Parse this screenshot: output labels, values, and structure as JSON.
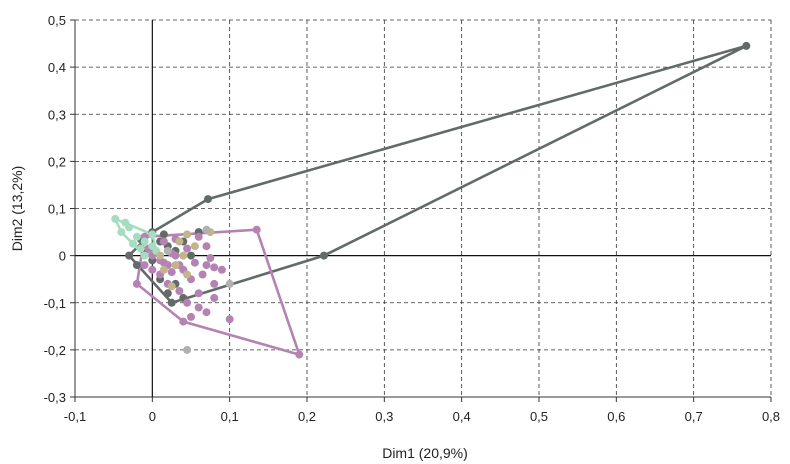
{
  "chart_data": {
    "type": "scatter",
    "title": "",
    "xlabel": "Dim1 (20,9%)",
    "ylabel": "Dim2 (13,2%)",
    "xlim": [
      -0.1,
      0.8
    ],
    "ylim": [
      -0.3,
      0.5
    ],
    "xticks": [
      -0.1,
      0,
      0.1,
      0.2,
      0.3,
      0.4,
      0.5,
      0.6,
      0.7,
      0.8
    ],
    "yticks": [
      -0.3,
      -0.2,
      -0.1,
      0,
      0.1,
      0.2,
      0.3,
      0.4,
      0.5
    ],
    "xtick_labels": [
      "-0,1",
      "0",
      "0,1",
      "0,2",
      "0,3",
      "0,4",
      "0,5",
      "0,6",
      "0,7",
      "0,8"
    ],
    "ytick_labels": [
      "-0,3",
      "-0,2",
      "-0,1",
      "0",
      "0,1",
      "0,2",
      "0,3",
      "0,4",
      "0,5"
    ],
    "grid": true,
    "grid_style": "dashed",
    "legend": "none",
    "series": [
      {
        "color": "#626b68",
        "hull": [
          [
            0.0,
            0.05
          ],
          [
            0.072,
            0.12
          ],
          [
            0.768,
            0.445
          ],
          [
            0.222,
            0.0
          ],
          [
            0.025,
            -0.1
          ],
          [
            -0.03,
            0.0
          ]
        ],
        "points": [
          [
            0.768,
            0.445
          ],
          [
            0.072,
            0.12
          ],
          [
            0.222,
            0.0
          ],
          [
            0.025,
            -0.1
          ],
          [
            -0.03,
            0.0
          ],
          [
            0.0,
            0.05
          ],
          [
            0.01,
            0.03
          ],
          [
            0.02,
            0.02
          ],
          [
            0.03,
            0.01
          ],
          [
            0.04,
            0.03
          ],
          [
            0.05,
            0.0
          ],
          [
            -0.02,
            -0.02
          ],
          [
            -0.01,
            0.01
          ],
          [
            0.0,
            -0.01
          ],
          [
            0.01,
            -0.05
          ],
          [
            0.02,
            -0.08
          ],
          [
            0.03,
            -0.06
          ],
          [
            0.04,
            -0.09
          ],
          [
            0.06,
            0.05
          ],
          [
            -0.015,
            0.035
          ],
          [
            0.015,
            0.045
          ]
        ]
      },
      {
        "color": "#b583b3",
        "hull": [
          [
            -0.01,
            0.04
          ],
          [
            0.135,
            0.055
          ],
          [
            0.19,
            -0.21
          ],
          [
            0.04,
            -0.14
          ],
          [
            -0.02,
            -0.06
          ]
        ],
        "points": [
          [
            0.135,
            0.055
          ],
          [
            0.19,
            -0.21
          ],
          [
            0.04,
            -0.14
          ],
          [
            -0.02,
            -0.06
          ],
          [
            -0.01,
            0.04
          ],
          [
            0.0,
            0.0
          ],
          [
            0.01,
            -0.01
          ],
          [
            0.02,
            -0.02
          ],
          [
            0.03,
            0.0
          ],
          [
            0.04,
            -0.03
          ],
          [
            0.05,
            -0.05
          ],
          [
            0.06,
            -0.08
          ],
          [
            0.07,
            -0.02
          ],
          [
            0.08,
            -0.06
          ],
          [
            0.1,
            -0.135
          ],
          [
            0.07,
            -0.12
          ],
          [
            0.05,
            -0.13
          ],
          [
            0.06,
            0.04
          ],
          [
            0.07,
            0.02
          ],
          [
            0.075,
            -0.005
          ],
          [
            0.08,
            -0.025
          ],
          [
            0.09,
            -0.03
          ],
          [
            0.03,
            0.035
          ],
          [
            0.015,
            0.03
          ],
          [
            -0.005,
            0.015
          ],
          [
            0.01,
            -0.04
          ],
          [
            0.02,
            -0.06
          ],
          [
            0.035,
            -0.075
          ],
          [
            0.045,
            -0.1
          ],
          [
            0.0,
            -0.03
          ],
          [
            -0.01,
            -0.02
          ],
          [
            0.025,
            0.005
          ],
          [
            0.045,
            0.015
          ],
          [
            0.055,
            -0.015
          ],
          [
            0.065,
            -0.04
          ],
          [
            0.08,
            -0.09
          ],
          [
            0.06,
            -0.11
          ],
          [
            0.035,
            -0.02
          ],
          [
            0.025,
            -0.035
          ],
          [
            0.015,
            -0.015
          ]
        ]
      },
      {
        "color": "#a6dcc0",
        "hull": [
          [
            -0.048,
            0.078
          ],
          [
            0.0,
            0.045
          ],
          [
            0.005,
            0.01
          ],
          [
            -0.01,
            0.0
          ],
          [
            -0.04,
            0.05
          ]
        ],
        "points": [
          [
            -0.048,
            0.078
          ],
          [
            0.0,
            0.045
          ],
          [
            -0.01,
            0.0
          ],
          [
            -0.04,
            0.05
          ],
          [
            -0.03,
            0.06
          ],
          [
            -0.02,
            0.04
          ],
          [
            -0.01,
            0.03
          ],
          [
            -0.025,
            0.025
          ],
          [
            0.0,
            0.02
          ],
          [
            -0.015,
            0.015
          ],
          [
            0.005,
            0.01
          ],
          [
            -0.035,
            0.07
          ]
        ]
      },
      {
        "color": "#c2b48c",
        "hull": [],
        "points": [
          [
            0.045,
            0.045
          ],
          [
            0.075,
            0.05
          ],
          [
            0.01,
            0.0
          ],
          [
            0.03,
            -0.02
          ],
          [
            0.045,
            -0.04
          ],
          [
            0.025,
            -0.065
          ],
          [
            0.035,
            0.03
          ],
          [
            0.055,
            0.02
          ],
          [
            0.015,
            -0.03
          ],
          [
            0.04,
            0.0
          ]
        ]
      },
      {
        "color": "#b1b1b1",
        "hull": [],
        "points": [
          [
            0.045,
            -0.2
          ],
          [
            0.1,
            -0.06
          ],
          [
            0.07,
            0.055
          ],
          [
            0.02,
            0.01
          ]
        ]
      }
    ]
  }
}
